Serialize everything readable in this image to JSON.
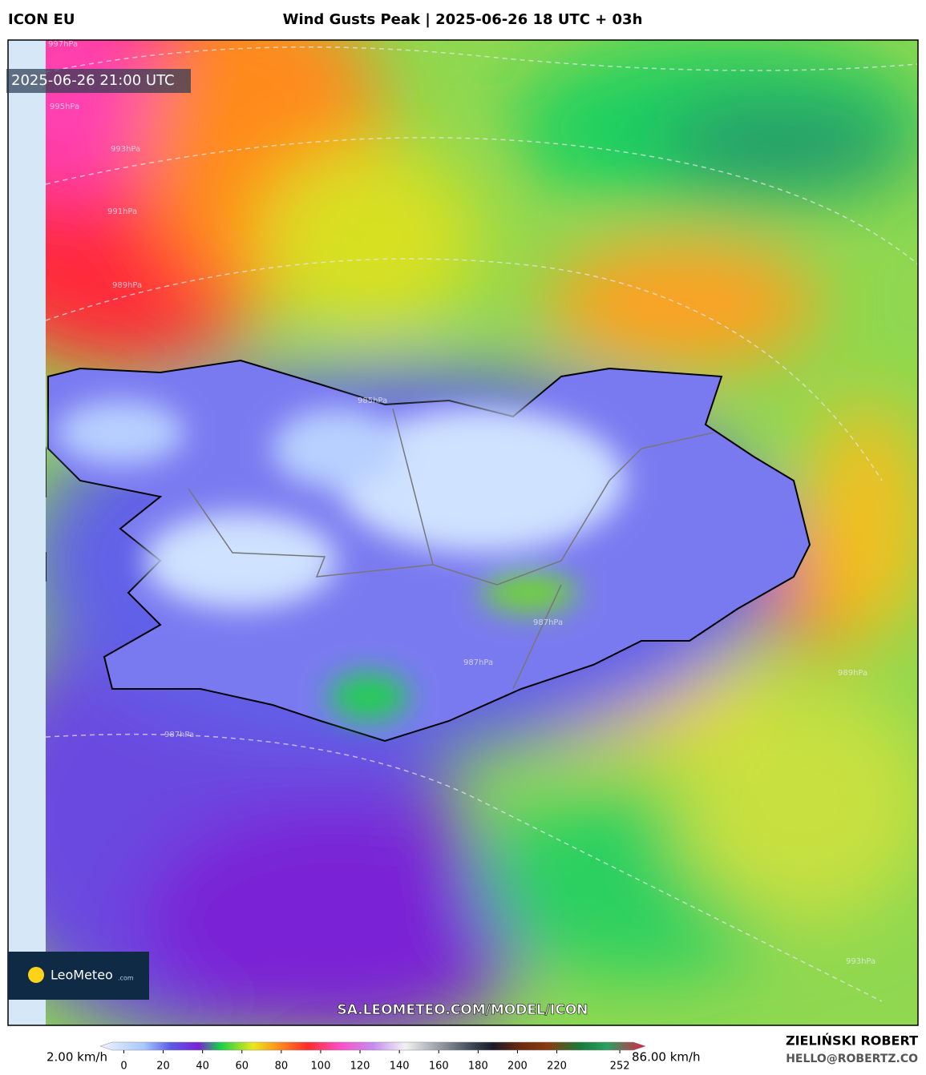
{
  "header": {
    "model": "ICON EU",
    "title": "Wind Gusts Peak | 2025-06-26 18 UTC + 03h"
  },
  "map": {
    "timestamp": "2025-06-26 21:00 UTC",
    "url": "SA.LEOMETEO.COM/MODEL/ICON",
    "logo": {
      "name": "LeoMeteo",
      "suffix": ".com"
    },
    "isobar_labels": [
      "997hPa",
      "995hPa",
      "993hPa",
      "991hPa",
      "989hPa",
      "985hPa",
      "987hPa",
      "987hPa",
      "987hPa",
      "989hPa",
      "993hPa"
    ]
  },
  "colorbar": {
    "min_label": "2.00 km/h",
    "max_label": "86.00 km/h",
    "lim": [
      -12,
      265
    ],
    "ticks": [
      0,
      20,
      40,
      60,
      80,
      100,
      120,
      140,
      160,
      180,
      200,
      220,
      252
    ]
  },
  "footer": {
    "author": "ZIELIŃSKI ROBERT",
    "email": "HELLO@ROBERTZ.CO"
  }
}
